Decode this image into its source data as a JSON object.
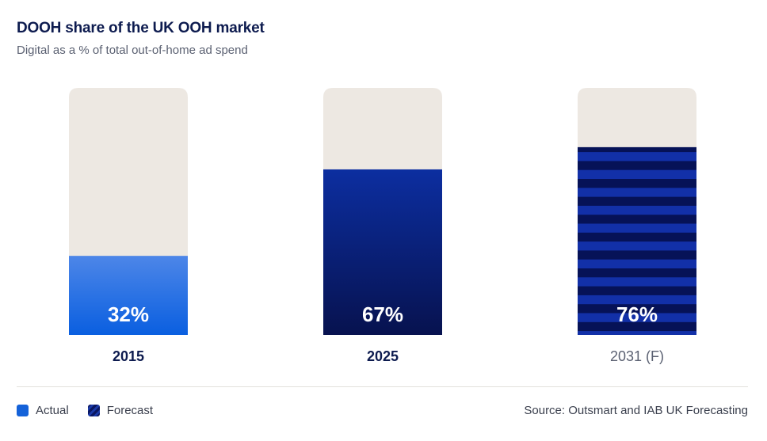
{
  "header": {
    "title": "DOOH share of the UK OOH market",
    "subtitle": "Digital as a % of total out-of-home ad spend"
  },
  "chart_data": {
    "type": "bar",
    "categories": [
      "2015",
      "2025",
      "2031 (F)"
    ],
    "values": [
      32,
      67,
      76
    ],
    "value_labels": [
      "32%",
      "67%",
      "76%"
    ],
    "ylim": [
      0,
      100
    ],
    "kinds": [
      "actual",
      "actual",
      "forecast"
    ],
    "grid": false,
    "legend_placement": "bottom-left"
  },
  "legend": {
    "items": [
      {
        "label": "Actual",
        "kind": "actual"
      },
      {
        "label": "Forecast",
        "kind": "forecast"
      }
    ]
  },
  "footer": {
    "source": "Source: Outsmart and IAB UK Forecasting"
  },
  "colors": {
    "title": "#0d1b4f",
    "track": "#ede8e2",
    "actual_light_top": "#4d86e8",
    "actual_light_bottom": "#0a5fe0",
    "actual_dark_top": "#0c2ea0",
    "actual_dark_bottom": "#07124f",
    "forecast_stripe_a": "#1230a8",
    "forecast_stripe_b": "#061257",
    "category_label": "#0d1b4f",
    "forecast_label": "#5b6172"
  }
}
